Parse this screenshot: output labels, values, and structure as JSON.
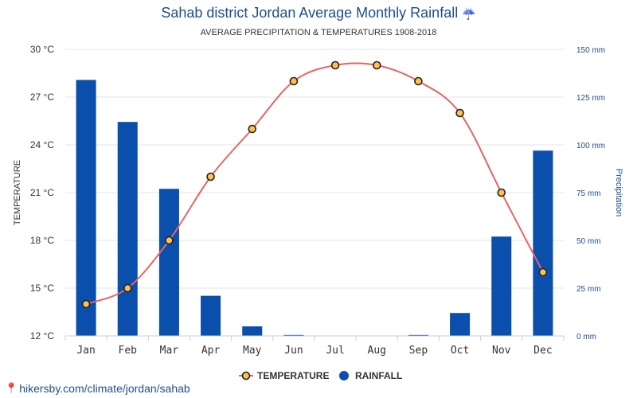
{
  "header": {
    "title": "Sahab district Jordan Average Monthly Rainfall",
    "title_icon": "umbrella-rain-icon",
    "subtitle": "AVERAGE PRECIPITATION & TEMPERATURES 1908-2018"
  },
  "footer": {
    "credit": "hikersby.com/climate/jordan/sahab",
    "credit_icon": "map-pin-icon"
  },
  "colors": {
    "title": "#1f4e8c",
    "bars": "#0b4fad",
    "line": "#e86464",
    "marker_fill": "#ffc04d",
    "marker_stroke": "#222222",
    "right_axis": "#1f4e8c",
    "grid": "#e6e6e6"
  },
  "chart_data": {
    "type": "bar+line",
    "categories": [
      "Jan",
      "Feb",
      "Mar",
      "Apr",
      "May",
      "Jun",
      "Jul",
      "Aug",
      "Sep",
      "Oct",
      "Nov",
      "Dec"
    ],
    "series": [
      {
        "name": "TEMPERATURE",
        "type": "line",
        "axis": "left",
        "unit": "°C",
        "values": [
          14,
          15,
          18,
          22,
          25,
          28,
          29,
          29,
          28,
          26,
          21,
          16
        ]
      },
      {
        "name": "RAINFALL",
        "type": "bar",
        "axis": "right",
        "unit": "mm",
        "values": [
          134,
          112,
          77,
          21,
          5,
          0.5,
          0,
          0,
          0.5,
          12,
          52,
          97
        ]
      }
    ],
    "left_axis": {
      "label": "TEMPERATURE",
      "ylim": [
        12,
        30
      ],
      "ticks": [
        "12 °C",
        "15 °C",
        "18 °C",
        "21 °C",
        "24 °C",
        "27 °C",
        "30 °C"
      ],
      "tick_values": [
        12,
        15,
        18,
        21,
        24,
        27,
        30
      ]
    },
    "right_axis": {
      "label": "Precipitation",
      "ylim": [
        0,
        150
      ],
      "ticks": [
        "0 mm",
        "25 mm",
        "50 mm",
        "75 mm",
        "100 mm",
        "125 mm",
        "150 mm"
      ],
      "tick_values": [
        0,
        25,
        50,
        75,
        100,
        125,
        150
      ]
    },
    "grid": true,
    "legend_position": "bottom-center"
  }
}
